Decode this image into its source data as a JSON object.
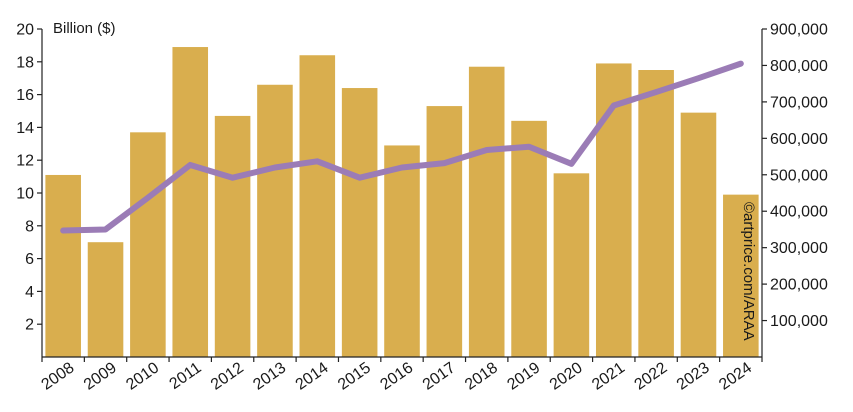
{
  "chart_data": {
    "type": "bar",
    "title": "",
    "ylabel": "Billion ($)",
    "categories": [
      "2008",
      "2009",
      "2010",
      "2011",
      "2012",
      "2013",
      "2014",
      "2015",
      "2016",
      "2017",
      "2018",
      "2019",
      "2020",
      "2021",
      "2022",
      "2023",
      "2024"
    ],
    "series": [
      {
        "type": "bar",
        "axis": "left",
        "color": "#D9AE4E",
        "values": [
          11.1,
          7.0,
          13.7,
          18.9,
          14.7,
          16.6,
          18.4,
          16.4,
          12.9,
          15.3,
          17.7,
          14.4,
          11.2,
          17.9,
          17.5,
          14.9,
          9.9
        ]
      },
      {
        "type": "line",
        "axis": "right",
        "color": "#9B7CB6",
        "values": [
          347000,
          350000,
          437000,
          527000,
          492000,
          520000,
          537000,
          492000,
          520000,
          532000,
          568000,
          577000,
          530000,
          690000,
          727000,
          765000,
          805000
        ]
      }
    ],
    "left_axis": {
      "ylim": [
        0,
        20
      ],
      "ticks": [
        "2",
        "4",
        "6",
        "8",
        "10",
        "12",
        "14",
        "16",
        "18",
        "20"
      ]
    },
    "right_axis": {
      "ylim": [
        0,
        900000
      ],
      "ticks": [
        "100,000",
        "200,000",
        "300,000",
        "400,000",
        "500,000",
        "600,000",
        "700,000",
        "800,000",
        "900,000"
      ]
    },
    "annotations": {
      "credit": "©artprice.com/ARAA"
    },
    "grid": false
  }
}
